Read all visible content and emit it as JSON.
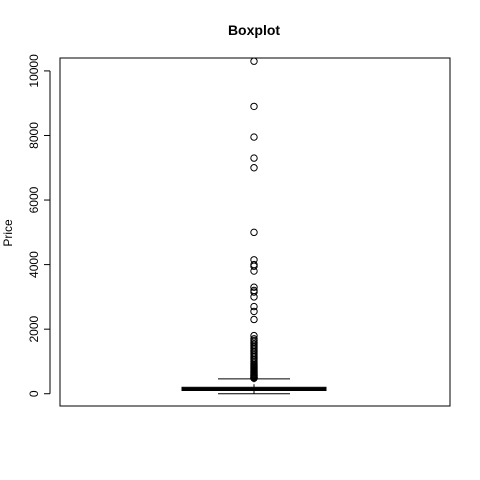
{
  "chart_data": {
    "type": "box",
    "title": "Boxplot",
    "xlabel": "",
    "ylabel": "Price",
    "ylim": [
      0,
      10400
    ],
    "yticks": [
      0,
      2000,
      4000,
      6000,
      8000,
      10000
    ],
    "grid": false,
    "box": {
      "min": 0,
      "q1": 100,
      "median": 150,
      "q3": 200,
      "whisker_high": 460
    },
    "outliers": [
      10300,
      8900,
      7950,
      7300,
      7000,
      5000,
      4150,
      4000,
      3950,
      3800,
      3300,
      3200,
      3150,
      3000,
      2700,
      2550,
      2300,
      1800,
      1700,
      1650,
      1600,
      1550,
      1500,
      1450,
      1400,
      1350,
      1300,
      1250,
      1200,
      1150,
      1100,
      1050,
      1000,
      950,
      900,
      870,
      840,
      810,
      780,
      750,
      720,
      690,
      660,
      630,
      600,
      580,
      560,
      540,
      520,
      500,
      490,
      480
    ]
  }
}
